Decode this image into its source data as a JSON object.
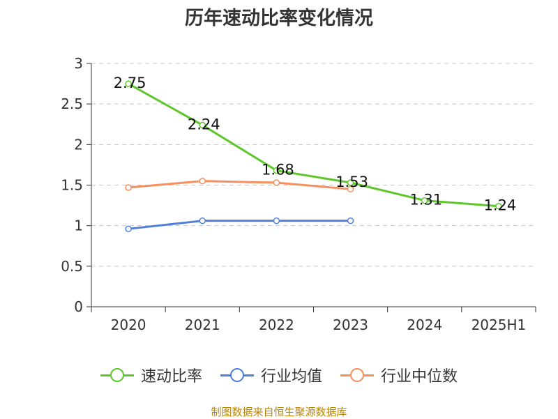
{
  "chart_data": {
    "type": "line",
    "title": "历年速动比率变化情况",
    "categories": [
      "2020",
      "2021",
      "2022",
      "2023",
      "2024",
      "2025H1"
    ],
    "ylim": [
      0,
      3
    ],
    "yticks": [
      "0",
      "0.5",
      "1",
      "1.5",
      "2",
      "2.5",
      "3"
    ],
    "grid": true,
    "legend_position": "bottom",
    "series": [
      {
        "name": "速动比率",
        "color": "#5dc72a",
        "values": [
          2.75,
          2.24,
          1.68,
          1.53,
          1.31,
          1.24
        ],
        "labels": [
          "2.75",
          "2.24",
          "1.68",
          "1.53",
          "1.31",
          "1.24"
        ]
      },
      {
        "name": "行业均值",
        "color": "#4f7fdb",
        "values": [
          0.96,
          1.06,
          1.06,
          1.06,
          null,
          null
        ]
      },
      {
        "name": "行业中位数",
        "color": "#f5905e",
        "values": [
          1.47,
          1.55,
          1.53,
          1.45,
          null,
          null
        ]
      }
    ]
  },
  "source": "制图数据来自恒生聚源数据库"
}
